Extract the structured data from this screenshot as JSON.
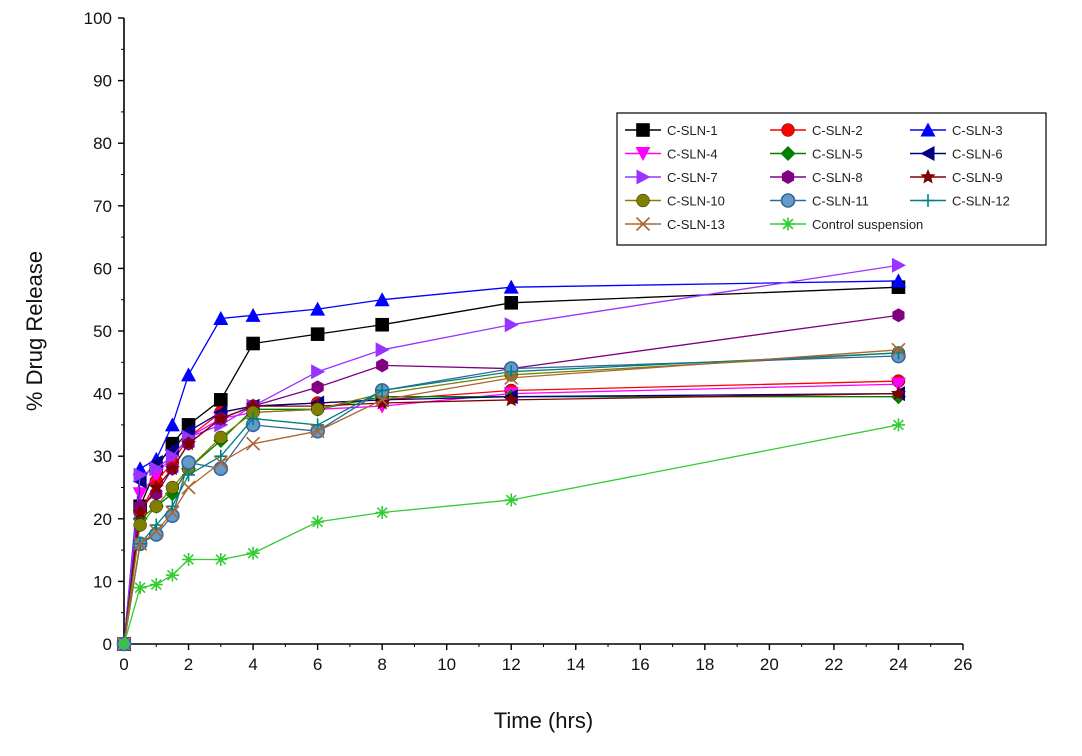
{
  "chart_data": {
    "type": "line",
    "title": "",
    "xlabel": "Time (hrs)",
    "ylabel": "% Drug Release",
    "xlim": [
      0,
      26
    ],
    "ylim": [
      0,
      100
    ],
    "xticks": [
      0,
      2,
      4,
      6,
      8,
      10,
      12,
      14,
      16,
      18,
      20,
      22,
      24,
      26
    ],
    "yticks": [
      0,
      10,
      20,
      30,
      40,
      50,
      60,
      70,
      80,
      90,
      100
    ],
    "grid": false,
    "legend_position": "top-right",
    "legend_columns": 3,
    "series": [
      {
        "name": "C-SLN-1",
        "color": "#000000",
        "marker": "square",
        "x": [
          0,
          0.5,
          1,
          1.5,
          2,
          3,
          4,
          6,
          8,
          12,
          24
        ],
        "y": [
          0,
          22,
          28,
          32,
          35,
          39,
          48,
          49.5,
          51,
          54.5,
          57
        ]
      },
      {
        "name": "C-SLN-2",
        "color": "#ff0000",
        "marker": "circle",
        "x": [
          0,
          0.5,
          1,
          1.5,
          2,
          3,
          4,
          6,
          8,
          12,
          24
        ],
        "y": [
          0,
          21,
          26,
          29,
          33,
          37,
          38,
          38.5,
          39,
          40.5,
          42
        ]
      },
      {
        "name": "C-SLN-3",
        "color": "#0000ff",
        "marker": "triangle-up",
        "x": [
          0,
          0.5,
          1,
          1.5,
          2,
          3,
          4,
          6,
          8,
          12,
          24
        ],
        "y": [
          0,
          28,
          29.5,
          35,
          43,
          52,
          52.5,
          53.5,
          55,
          57,
          58
        ]
      },
      {
        "name": "C-SLN-4",
        "color": "#ff00ff",
        "marker": "triangle-down",
        "x": [
          0,
          0.5,
          1,
          1.5,
          2,
          3,
          4,
          6,
          8,
          12,
          24
        ],
        "y": [
          0,
          24,
          27,
          30,
          33,
          36,
          37,
          37.5,
          38,
          40,
          41.5
        ]
      },
      {
        "name": "C-SLN-5",
        "color": "#008000",
        "marker": "diamond",
        "x": [
          0,
          0.5,
          1,
          1.5,
          2,
          3,
          4,
          6,
          8,
          12,
          24
        ],
        "y": [
          0,
          20,
          22,
          24,
          28,
          32.5,
          37.5,
          37.5,
          39.5,
          39.5,
          39.5
        ]
      },
      {
        "name": "C-SLN-6",
        "color": "#000080",
        "marker": "triangle-left",
        "x": [
          0,
          0.5,
          1,
          1.5,
          2,
          3,
          4,
          6,
          8,
          12,
          24
        ],
        "y": [
          0,
          26,
          29,
          31,
          34,
          37,
          38,
          38.5,
          39,
          39.5,
          40
        ]
      },
      {
        "name": "C-SLN-7",
        "color": "#9933ff",
        "marker": "triangle-right",
        "x": [
          0,
          0.5,
          1,
          1.5,
          2,
          3,
          4,
          6,
          8,
          12,
          24
        ],
        "y": [
          0,
          27,
          28,
          30,
          33,
          35,
          38,
          43.5,
          47,
          51,
          60.5
        ]
      },
      {
        "name": "C-SLN-8",
        "color": "#800080",
        "marker": "hexagon",
        "x": [
          0,
          0.5,
          1,
          1.5,
          2,
          3,
          4,
          6,
          8,
          12,
          24
        ],
        "y": [
          0,
          22,
          24,
          28,
          32,
          36,
          38,
          41,
          44.5,
          44,
          52.5
        ]
      },
      {
        "name": "C-SLN-9",
        "color": "#800000",
        "marker": "star",
        "x": [
          0,
          0.5,
          1,
          1.5,
          2,
          3,
          4,
          6,
          8,
          12,
          24
        ],
        "y": [
          0,
          21,
          25,
          28,
          32,
          36,
          38,
          38,
          38.5,
          39,
          40
        ]
      },
      {
        "name": "C-SLN-10",
        "color": "#808000",
        "marker": "circle",
        "x": [
          0,
          0.5,
          1,
          1.5,
          2,
          3,
          4,
          6,
          8,
          12,
          24
        ],
        "y": [
          0,
          19,
          22,
          25,
          28,
          33,
          37,
          37.5,
          40,
          43,
          46.5
        ]
      },
      {
        "name": "C-SLN-11",
        "color": "#336699",
        "marker": "circle-half",
        "x": [
          0,
          0.5,
          1,
          1.5,
          2,
          3,
          4,
          6,
          8,
          12,
          24
        ],
        "y": [
          0,
          16,
          17.5,
          20.5,
          29,
          28,
          35,
          34,
          40.5,
          44,
          46
        ]
      },
      {
        "name": "C-SLN-12",
        "color": "#008080",
        "marker": "plus",
        "x": [
          0,
          0.5,
          1,
          1.5,
          2,
          3,
          4,
          6,
          8,
          12,
          24
        ],
        "y": [
          0,
          16,
          19,
          22,
          27,
          30,
          36,
          35,
          40.5,
          43.5,
          46.5
        ]
      },
      {
        "name": "C-SLN-13",
        "color": "#aa6633",
        "marker": "cross",
        "x": [
          0,
          0.5,
          1,
          1.5,
          2,
          3,
          4,
          6,
          8,
          12,
          24
        ],
        "y": [
          0,
          16,
          18,
          21,
          25,
          29,
          32,
          34,
          39,
          42.5,
          47
        ]
      },
      {
        "name": "Control suspension",
        "color": "#33cc33",
        "marker": "asterisk",
        "x": [
          0,
          0.5,
          1,
          1.5,
          2,
          3,
          4,
          6,
          8,
          12,
          24
        ],
        "y": [
          0,
          9,
          9.5,
          11,
          13.5,
          13.5,
          14.5,
          19.5,
          21,
          23,
          35
        ]
      }
    ]
  }
}
